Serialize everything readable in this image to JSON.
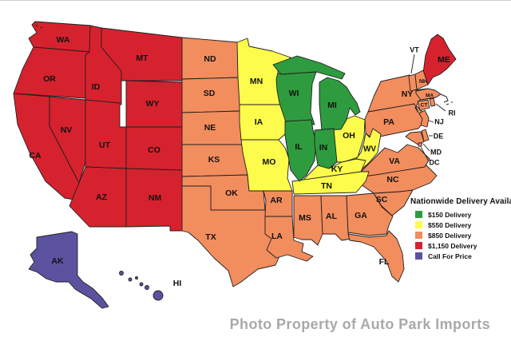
{
  "legend": {
    "title": "Nationwide Delivery Available",
    "items": [
      {
        "tier": "t150",
        "label": "$150 Delivery",
        "color": "#2e9c3e"
      },
      {
        "tier": "t550",
        "label": "$550 Delivery",
        "color": "#fdfb4b"
      },
      {
        "tier": "t850",
        "label": "$850 Delivery",
        "color": "#f28d5e"
      },
      {
        "tier": "t1150",
        "label": "$1,150 Delivery",
        "color": "#d6222e"
      },
      {
        "tier": "call",
        "label": "Call For Price",
        "color": "#5b529f"
      }
    ]
  },
  "watermark": {
    "text": "Photo Property of Auto Park Imports",
    "color": "#a9a9a9"
  },
  "map": {
    "stroke_color": "#1f1f1f",
    "label_color": "#111111",
    "states": [
      {
        "abbr": "WA",
        "tier": "t1150"
      },
      {
        "abbr": "OR",
        "tier": "t1150"
      },
      {
        "abbr": "CA",
        "tier": "t1150"
      },
      {
        "abbr": "ID",
        "tier": "t1150"
      },
      {
        "abbr": "MT",
        "tier": "t1150"
      },
      {
        "abbr": "WY",
        "tier": "t1150"
      },
      {
        "abbr": "NV",
        "tier": "t1150"
      },
      {
        "abbr": "UT",
        "tier": "t1150"
      },
      {
        "abbr": "CO",
        "tier": "t1150"
      },
      {
        "abbr": "AZ",
        "tier": "t1150"
      },
      {
        "abbr": "NM",
        "tier": "t1150"
      },
      {
        "abbr": "ME",
        "tier": "t1150"
      },
      {
        "abbr": "ND",
        "tier": "t850"
      },
      {
        "abbr": "SD",
        "tier": "t850"
      },
      {
        "abbr": "NE",
        "tier": "t850"
      },
      {
        "abbr": "KS",
        "tier": "t850"
      },
      {
        "abbr": "OK",
        "tier": "t850"
      },
      {
        "abbr": "TX",
        "tier": "t850"
      },
      {
        "abbr": "AR",
        "tier": "t850"
      },
      {
        "abbr": "LA",
        "tier": "t850"
      },
      {
        "abbr": "MS",
        "tier": "t850"
      },
      {
        "abbr": "AL",
        "tier": "t850"
      },
      {
        "abbr": "GA",
        "tier": "t850"
      },
      {
        "abbr": "FL",
        "tier": "t850"
      },
      {
        "abbr": "SC",
        "tier": "t850"
      },
      {
        "abbr": "NC",
        "tier": "t850"
      },
      {
        "abbr": "VA",
        "tier": "t850"
      },
      {
        "abbr": "PA",
        "tier": "t850"
      },
      {
        "abbr": "NY",
        "tier": "t850"
      },
      {
        "abbr": "NJ",
        "tier": "t850"
      },
      {
        "abbr": "DE",
        "tier": "t850"
      },
      {
        "abbr": "MD",
        "tier": "t850"
      },
      {
        "abbr": "DC",
        "tier": "t850"
      },
      {
        "abbr": "VT",
        "tier": "t850"
      },
      {
        "abbr": "NH",
        "tier": "t850"
      },
      {
        "abbr": "MA",
        "tier": "t850"
      },
      {
        "abbr": "CT",
        "tier": "t850"
      },
      {
        "abbr": "RI",
        "tier": "t850"
      },
      {
        "abbr": "MN",
        "tier": "t550"
      },
      {
        "abbr": "IA",
        "tier": "t550"
      },
      {
        "abbr": "MO",
        "tier": "t550"
      },
      {
        "abbr": "OH",
        "tier": "t550"
      },
      {
        "abbr": "WV",
        "tier": "t550"
      },
      {
        "abbr": "KY",
        "tier": "t550"
      },
      {
        "abbr": "TN",
        "tier": "t550"
      },
      {
        "abbr": "WI",
        "tier": "t150"
      },
      {
        "abbr": "MI",
        "tier": "t150"
      },
      {
        "abbr": "IL",
        "tier": "t150"
      },
      {
        "abbr": "IN",
        "tier": "t150"
      },
      {
        "abbr": "AK",
        "tier": "call"
      },
      {
        "abbr": "HI",
        "tier": "call"
      }
    ]
  }
}
